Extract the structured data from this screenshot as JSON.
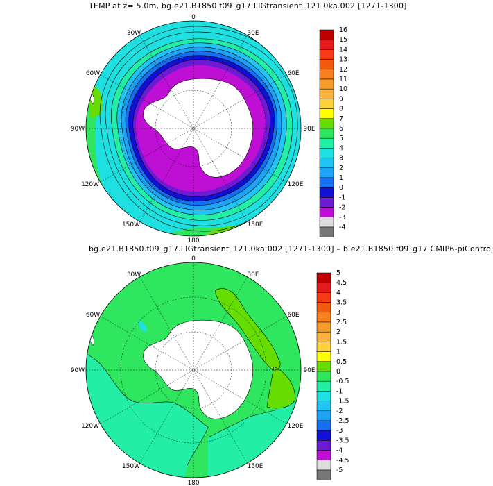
{
  "panel1": {
    "title": "TEMP at z=    5.0m, bg.e21.B1850.f09_g17.LIGtransient_121.0ka.002 [1271-1300]",
    "lon_labels": {
      "0": "0",
      "30E": "30E",
      "60E": "60E",
      "90E": "90E",
      "120E": "120E",
      "150E": "150E",
      "180": "180",
      "150W": "150W",
      "120W": "120W",
      "90W": "90W",
      "60W": "60W",
      "30W": "30W"
    },
    "colorbar": {
      "labels": [
        "16",
        "15",
        "14",
        "13",
        "12",
        "11",
        "10",
        "9",
        "8",
        "7",
        "6",
        "5",
        "4",
        "3",
        "2",
        "1",
        "0",
        "-1",
        "-2",
        "-3",
        "-4"
      ],
      "colors": [
        "#c00000",
        "#e41a1c",
        "#f53a16",
        "#f25b0f",
        "#f7811f",
        "#f79b2b",
        "#fbb23d",
        "#fdd13c",
        "#ffff00",
        "#66dd00",
        "#2fe65f",
        "#22eea6",
        "#1fe0e0",
        "#21c5f5",
        "#1ea2f5",
        "#1470f0",
        "#1010d8",
        "#6a1bd3",
        "#c00fd4",
        "#dddddd",
        "#777777"
      ]
    }
  },
  "panel2": {
    "title": "bg.e21.B1850.f09_g17.LIGtransient_121.0ka.002 [1271-1300] – b.e21.B1850.f09_g17.CMIP6-piControl",
    "lon_labels": {
      "0": "0",
      "30E": "30E",
      "60E": "60E",
      "90E": "90E",
      "120E": "120E",
      "150E": "150E",
      "180": "180",
      "150W": "150W",
      "120W": "120W",
      "90W": "90W",
      "60W": "60W",
      "30W": "30W"
    },
    "colorbar": {
      "labels": [
        "5",
        "4.5",
        "4",
        "3.5",
        "3",
        "2.5",
        "2",
        "1.5",
        "1",
        "0.5",
        "0",
        "-0.5",
        "-1",
        "-1.5",
        "-2",
        "-2.5",
        "-3",
        "-3.5",
        "-4",
        "-4.5",
        "-5"
      ],
      "colors": [
        "#c00000",
        "#e41a1c",
        "#f53a16",
        "#f25b0f",
        "#f7811f",
        "#f79b2b",
        "#fbb23d",
        "#fdd13c",
        "#ffff00",
        "#66dd00",
        "#2fe65f",
        "#22eea6",
        "#1fe0e0",
        "#21c5f5",
        "#1ea2f5",
        "#1470f0",
        "#1010d8",
        "#6a1bd3",
        "#c00fd4",
        "#dddddd",
        "#777777"
      ]
    }
  },
  "colors": {
    "land": "#ffffff",
    "ocean_diff_green": "#2fe65f",
    "ocean_diff_cyan": "#22eea6",
    "contour": "#000000"
  }
}
